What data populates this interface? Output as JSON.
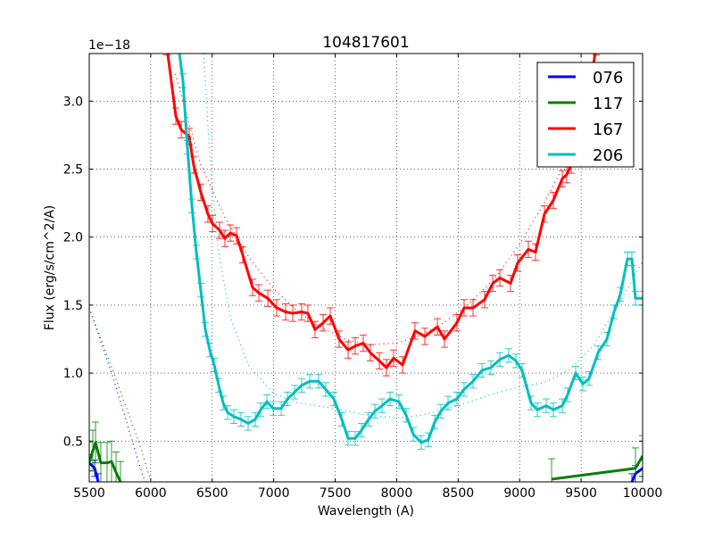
{
  "chart_data": {
    "type": "line",
    "title": "104817601",
    "xlabel": "Wavelength (A)",
    "ylabel": "Flux (erg/s/cm^2/A)",
    "y_offset_label": "1e−18",
    "xlim": [
      5500,
      10000
    ],
    "ylim": [
      0.2,
      3.35
    ],
    "xticks": [
      5500,
      6000,
      6500,
      7000,
      7500,
      8000,
      8500,
      9000,
      9500,
      10000
    ],
    "yticks": [
      0.5,
      1.0,
      1.5,
      2.0,
      2.5,
      3.0
    ],
    "ytick_labels": [
      "0.5",
      "1.0",
      "1.5",
      "2.0",
      "2.5",
      "3.0"
    ],
    "grid": true,
    "legend_position": "top-right",
    "series": [
      {
        "name": "076",
        "color": "#0000ff",
        "err": 0.06,
        "x": [
          5500,
          5544,
          5573,
          9913,
          9942,
          10000
        ],
        "y": [
          0.34,
          0.3,
          0.2,
          0.2,
          0.26,
          0.3
        ],
        "fit_x": [
          5500,
          5700,
          5900,
          5960
        ],
        "fit_y": [
          1.48,
          0.95,
          0.35,
          0.18
        ]
      },
      {
        "name": "117",
        "color": "#008000",
        "err": 0.15,
        "x": [
          5500,
          5529,
          5551,
          5594,
          5645,
          5681,
          5718,
          5754,
          9260,
          9942,
          10000
        ],
        "y": [
          0.34,
          0.43,
          0.49,
          0.34,
          0.34,
          0.35,
          0.27,
          0.2,
          0.22,
          0.3,
          0.39
        ],
        "fit_x": [
          5500,
          5700,
          5900,
          6010
        ],
        "fit_y": [
          1.48,
          1.0,
          0.5,
          0.18
        ]
      },
      {
        "name": "167",
        "color": "#ff0000",
        "err": 0.06,
        "x": [
          6131,
          6204,
          6248,
          6313,
          6349,
          6407,
          6465,
          6502,
          6560,
          6603,
          6647,
          6698,
          6748,
          6828,
          6879,
          6952,
          7024,
          7097,
          7155,
          7227,
          7278,
          7336,
          7402,
          7460,
          7532,
          7605,
          7663,
          7728,
          7786,
          7859,
          7917,
          7975,
          8048,
          8149,
          8229,
          8331,
          8389,
          8490,
          8548,
          8621,
          8715,
          8781,
          8839,
          8926,
          8984,
          9071,
          9129,
          9202,
          9274,
          9347,
          9383,
          9419,
          9470,
          9528,
          9622
        ],
        "y": [
          3.4,
          2.89,
          2.79,
          2.74,
          2.53,
          2.33,
          2.17,
          2.1,
          2.05,
          1.99,
          2.03,
          2.01,
          1.87,
          1.63,
          1.59,
          1.55,
          1.48,
          1.45,
          1.44,
          1.45,
          1.44,
          1.32,
          1.37,
          1.42,
          1.25,
          1.17,
          1.2,
          1.22,
          1.15,
          1.09,
          1.04,
          1.11,
          1.06,
          1.31,
          1.27,
          1.34,
          1.25,
          1.37,
          1.48,
          1.48,
          1.54,
          1.66,
          1.7,
          1.66,
          1.81,
          1.91,
          1.89,
          2.17,
          2.27,
          2.43,
          2.46,
          2.53,
          2.69,
          2.82,
          3.4
        ],
        "fit_x": [
          6200,
          6400,
          6600,
          6800,
          7000,
          7200,
          7400,
          7600,
          7800,
          8000,
          8200,
          8400,
          8600,
          8800,
          9000,
          9200,
          9400,
          9600
        ],
        "fit_y": [
          3.2,
          2.55,
          2.15,
          1.85,
          1.62,
          1.45,
          1.33,
          1.24,
          1.21,
          1.22,
          1.28,
          1.38,
          1.52,
          1.7,
          1.95,
          2.25,
          2.6,
          3.1
        ]
      },
      {
        "name": "206",
        "color": "#00bfbf",
        "err": 0.05,
        "x": [
          6226,
          6262,
          6298,
          6335,
          6371,
          6407,
          6444,
          6480,
          6516,
          6553,
          6589,
          6625,
          6676,
          6734,
          6792,
          6850,
          6894,
          6945,
          6996,
          7061,
          7112,
          7170,
          7227,
          7293,
          7365,
          7423,
          7489,
          7554,
          7605,
          7663,
          7714,
          7772,
          7823,
          7881,
          7946,
          8018,
          8077,
          8135,
          8200,
          8258,
          8309,
          8360,
          8418,
          8490,
          8548,
          8621,
          8694,
          8766,
          8839,
          8911,
          8970,
          9020,
          9093,
          9144,
          9216,
          9274,
          9347,
          9390,
          9456,
          9514,
          9565,
          9638,
          9710,
          9768,
          9819,
          9877,
          9913,
          9942,
          10000
        ],
        "y": [
          3.4,
          3.15,
          2.66,
          2.23,
          1.89,
          1.61,
          1.32,
          1.17,
          1.06,
          0.91,
          0.78,
          0.71,
          0.68,
          0.66,
          0.63,
          0.66,
          0.73,
          0.79,
          0.74,
          0.74,
          0.81,
          0.86,
          0.91,
          0.94,
          0.94,
          0.88,
          0.81,
          0.66,
          0.52,
          0.52,
          0.58,
          0.66,
          0.72,
          0.76,
          0.81,
          0.79,
          0.69,
          0.55,
          0.49,
          0.51,
          0.64,
          0.72,
          0.78,
          0.81,
          0.88,
          0.94,
          1.02,
          1.04,
          1.1,
          1.13,
          1.09,
          1.02,
          0.78,
          0.73,
          0.76,
          0.73,
          0.76,
          0.84,
          1.0,
          0.92,
          0.96,
          1.15,
          1.25,
          1.45,
          1.58,
          1.84,
          1.84,
          1.55,
          1.55
        ],
        "fit_x": [
          6430,
          6480,
          6550,
          6650,
          6800,
          7000,
          7200,
          7500,
          7700,
          8000,
          8200,
          8500,
          8800,
          9000,
          9200,
          9400,
          9600,
          9800,
          10000
        ],
        "fit_y": [
          3.35,
          2.6,
          1.9,
          1.4,
          1.05,
          0.85,
          0.78,
          0.74,
          0.7,
          0.67,
          0.69,
          0.76,
          0.85,
          0.9,
          0.93,
          1.02,
          1.2,
          1.5,
          1.82
        ]
      }
    ]
  }
}
